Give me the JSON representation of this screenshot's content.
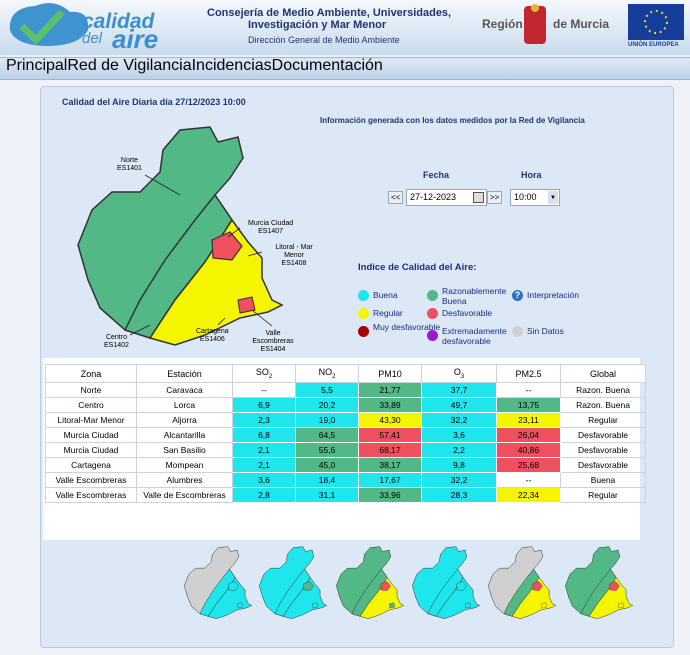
{
  "header": {
    "logo": [
      "calidad",
      "del",
      "aire"
    ],
    "org_lines": [
      "Consejería de Medio Ambiente, Universidades,",
      "Investigación y Mar Menor"
    ],
    "directorate": "Dirección General de Medio Ambiente",
    "region": [
      "Región",
      "de Murcia"
    ],
    "eu": "UNIÓN EUROPEA"
  },
  "nav": [
    "Principal",
    "Red de Vigilancia",
    "Incidencias",
    "Documentación"
  ],
  "title": "Calidad del Aire Diaria día 27/12/2023 10:00",
  "info": "Información generada con los datos medidos por la Red de Vigilancia",
  "map_labels": [
    {
      "name": "Norte",
      "code": "ES1401"
    },
    {
      "name": "Murcia Ciudad",
      "code": "ES1407"
    },
    {
      "name": "Litoral - Mar Menor",
      "code": "ES1408"
    },
    {
      "name": "Centro",
      "code": "ES1402"
    },
    {
      "name": "Cartagena",
      "code": "ES1406"
    },
    {
      "name": "Valle Escombreras",
      "code": "ES1404"
    }
  ],
  "controls": {
    "date_label": "Fecha",
    "date_value": "27-12-2023",
    "prev": "<<",
    "next": ">>",
    "hour_label": "Hora",
    "hour_value": "10:00"
  },
  "legend": {
    "title": "Indice de Calidad del Aire:",
    "help_icon": "?",
    "items": [
      {
        "text": "Buena",
        "color": "#1ee6ec"
      },
      {
        "text": "Razonablemente Buena",
        "color": "#52b885"
      },
      {
        "text": "Interpretación",
        "color": "#2a6fc9"
      },
      {
        "text": "Regular",
        "color": "#f5f500"
      },
      {
        "text": "Desfavorable",
        "color": "#ef5060"
      },
      {
        "text": "Muy desfavorable",
        "color": "#a80000"
      },
      {
        "text": "Extremadamente desfavorable",
        "color": "#9b19d6"
      },
      {
        "text": "Sin Datos",
        "color": "#d0d0d0"
      }
    ]
  },
  "table": {
    "headers": [
      {
        "text": "Zona"
      },
      {
        "text": "Estación"
      },
      {
        "text": "SO",
        "sub": "2"
      },
      {
        "text": "NO",
        "sub": "2"
      },
      {
        "text": "PM10"
      },
      {
        "text": "O",
        "sub": "3"
      },
      {
        "text": "PM2.5"
      },
      {
        "text": "Global"
      }
    ],
    "rows": [
      {
        "cells": [
          "Norte",
          "Caravaca",
          "--",
          "5,5",
          "21,77",
          "37,7",
          "--",
          "Razon. Buena"
        ],
        "colors": [
          null,
          null,
          null,
          "#1ee6ec",
          "#52b885",
          "#1ee6ec",
          null,
          null
        ]
      },
      {
        "cells": [
          "Centro",
          "Lorca",
          "6,9",
          "20,2",
          "33,89",
          "49,7",
          "13,75",
          "Razon. Buena"
        ],
        "colors": [
          null,
          null,
          "#1ee6ec",
          "#1ee6ec",
          "#52b885",
          "#1ee6ec",
          "#52b885",
          null
        ]
      },
      {
        "cells": [
          "Litoral-Mar Menor",
          "Aljorra",
          "2,3",
          "19,0",
          "43,30",
          "32,2",
          "23,11",
          "Regular"
        ],
        "colors": [
          null,
          null,
          "#1ee6ec",
          "#1ee6ec",
          "#f5f500",
          "#1ee6ec",
          "#f5f500",
          null
        ]
      },
      {
        "cells": [
          "Murcia Ciudad",
          "Alcantarilla",
          "6,8",
          "64,5",
          "57,41",
          "3,6",
          "26,04",
          "Desfavorable"
        ],
        "colors": [
          null,
          null,
          "#1ee6ec",
          "#52b885",
          "#ef5060",
          "#1ee6ec",
          "#ef5060",
          null
        ]
      },
      {
        "cells": [
          "Murcia Ciudad",
          "San Basilio",
          "2,1",
          "55,6",
          "68,17",
          "2,2",
          "40,86",
          "Desfavorable"
        ],
        "colors": [
          null,
          null,
          "#1ee6ec",
          "#52b885",
          "#ef5060",
          "#1ee6ec",
          "#ef5060",
          null
        ]
      },
      {
        "cells": [
          "Cartagena",
          "Mompean",
          "2,1",
          "45,0",
          "38,17",
          "9,8",
          "25,68",
          "Desfavorable"
        ],
        "colors": [
          null,
          null,
          "#1ee6ec",
          "#52b885",
          "#52b885",
          "#1ee6ec",
          "#ef5060",
          null
        ]
      },
      {
        "cells": [
          "Valle Escombreras",
          "Alumbres",
          "3,6",
          "18,4",
          "17,67",
          "32,2",
          "--",
          "Buena"
        ],
        "colors": [
          null,
          null,
          "#1ee6ec",
          "#1ee6ec",
          "#1ee6ec",
          "#1ee6ec",
          null,
          null
        ]
      },
      {
        "cells": [
          "Valle Escombreras",
          "Valle de Escombreras",
          "2,8",
          "31,1",
          "33,96",
          "28,3",
          "22,34",
          "Regular"
        ],
        "colors": [
          null,
          null,
          "#1ee6ec",
          "#1ee6ec",
          "#52b885",
          "#1ee6ec",
          "#f5f500",
          null
        ]
      }
    ]
  }
}
